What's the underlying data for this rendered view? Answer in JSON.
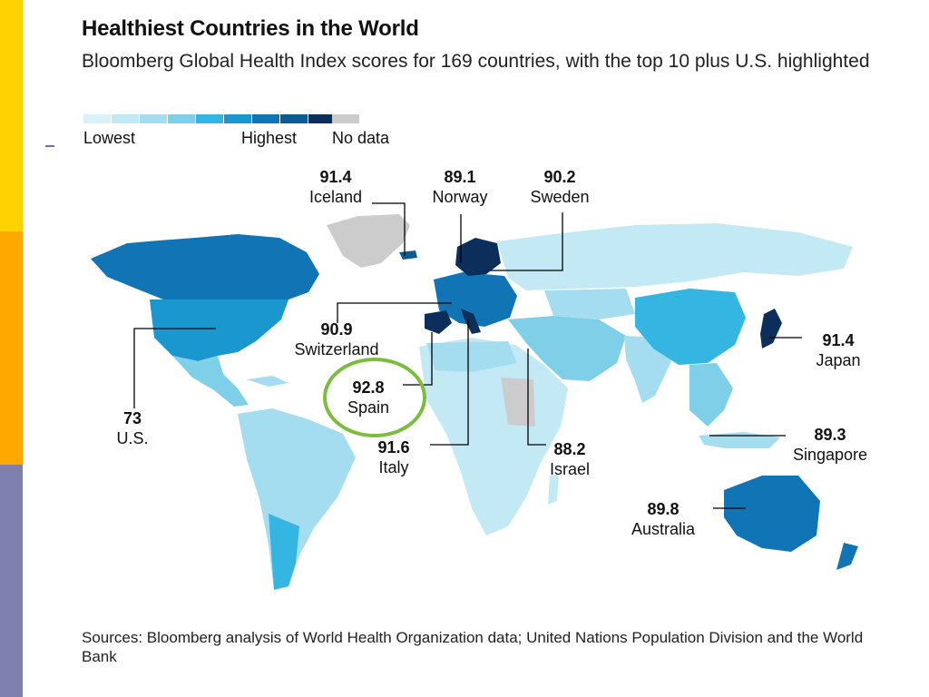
{
  "title": "Healthiest Countries in the World",
  "subtitle": "Bloomberg Global Health Index scores for 169 countries, with the top 10 plus U.S. highlighted",
  "legend": {
    "low_label": "Lowest",
    "high_label": "Highest",
    "nodata_label": "No data",
    "scale_colors": [
      "#d9f1f8",
      "#c3e9f5",
      "#a5ddf0",
      "#7fcfe9",
      "#35b5e1",
      "#1a97cf",
      "#1174b5",
      "#0d5a94",
      "#0b2f5a"
    ],
    "nodata_color": "#cccccc"
  },
  "callouts": [
    {
      "country": "Iceland",
      "score": "91.4"
    },
    {
      "country": "Norway",
      "score": "89.1"
    },
    {
      "country": "Sweden",
      "score": "90.2"
    },
    {
      "country": "Switzerland",
      "score": "90.9"
    },
    {
      "country": "Japan",
      "score": "91.4"
    },
    {
      "country": "Spain",
      "score": "92.8"
    },
    {
      "country": "U.S.",
      "score": "73"
    },
    {
      "country": "Italy",
      "score": "91.6"
    },
    {
      "country": "Israel",
      "score": "88.2"
    },
    {
      "country": "Singapore",
      "score": "89.3"
    },
    {
      "country": "Australia",
      "score": "89.8"
    }
  ],
  "sources": "Sources: Bloomberg analysis of World Health Organization data; United Nations Population Division and the World Bank"
}
